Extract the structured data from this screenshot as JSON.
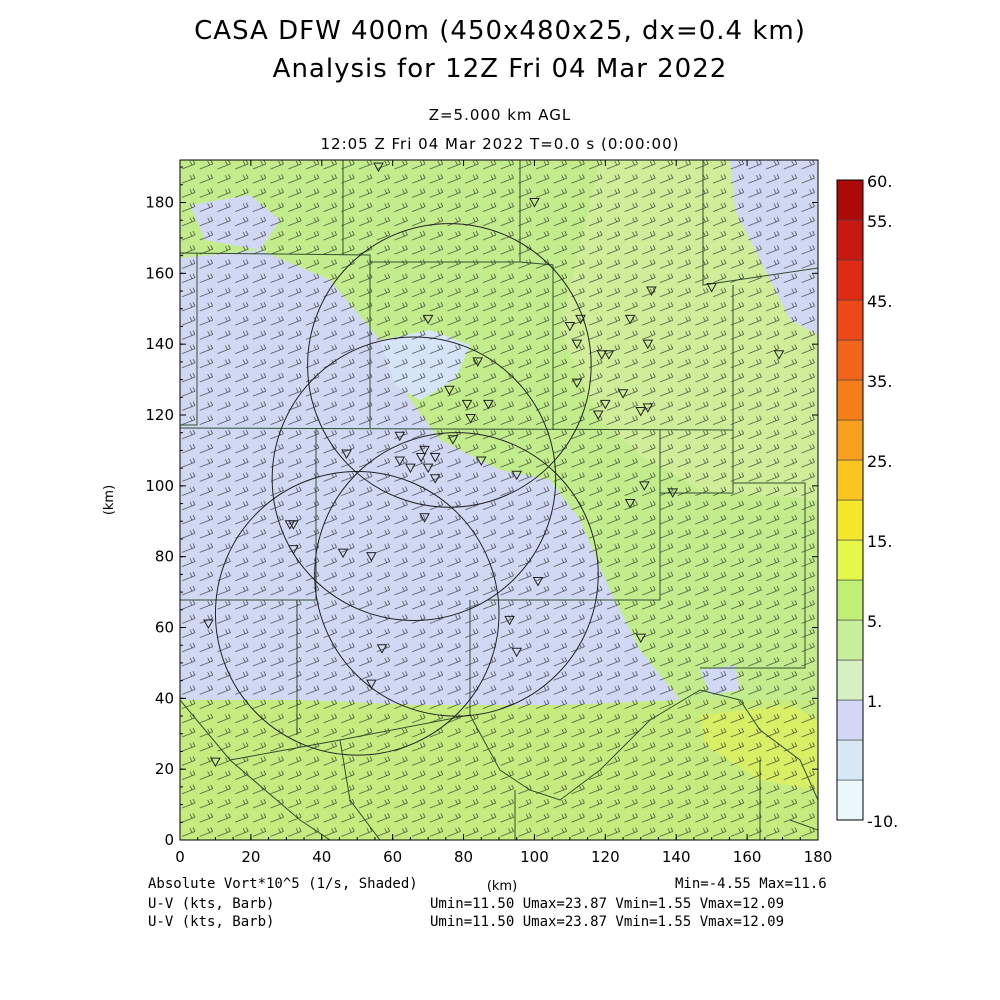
{
  "header": {
    "title_line1": "CASA DFW 400m (450x480x25, dx=0.4 km)",
    "title_line2": "Analysis for 12Z Fri 04 Mar 2022",
    "level": "Z=5.000 km AGL",
    "time": "12:05 Z Fri 04 Mar 2022    T=0.0 s (0:00:00)"
  },
  "axes": {
    "xlabel": "(km)",
    "ylabel": "(km)",
    "x_range": [
      0,
      180
    ],
    "y_range": [
      0,
      192
    ],
    "x_ticks": [
      "0",
      "20",
      "40",
      "60",
      "80",
      "100",
      "120",
      "140",
      "160",
      "180"
    ],
    "y_ticks": [
      "0",
      "20",
      "40",
      "60",
      "80",
      "100",
      "120",
      "140",
      "160",
      "180"
    ]
  },
  "colorbar": {
    "labels": [
      "60.",
      "55.",
      "45.",
      "35.",
      "25.",
      "15.",
      "5.",
      "1.",
      "-10."
    ],
    "colors": [
      "#ecf7fb",
      "#d7e8f7",
      "#d2d8f5",
      "#d7f0c3",
      "#c8ef9c",
      "#c0f075",
      "#e5f84a",
      "#f4e72c",
      "#fbc520",
      "#f9a11f",
      "#f67e18",
      "#f1641a",
      "#ec4818",
      "#e02b14",
      "#c71812",
      "#ae0909"
    ]
  },
  "fields": {
    "shaded_label": "Absolute Vort*10^5 (1/s, Shaded)",
    "shaded_minmax": "Min=-4.55 Max=11.6",
    "barb1_label": "U-V (kts, Barb)",
    "barb1_stats": "Umin=11.50 Umax=23.87 Vmin=1.55 Vmax=12.09",
    "barb2_label": "U-V (kts, Barb)",
    "barb2_stats": "Umin=11.50 Umax=23.87 Vmin=1.55 Vmax=12.09"
  },
  "map": {
    "radar_rings": [
      {
        "x": 76,
        "y": 134,
        "r": 40
      },
      {
        "x": 66,
        "y": 102,
        "r": 40
      },
      {
        "x": 78,
        "y": 75,
        "r": 40
      },
      {
        "x": 50,
        "y": 64,
        "r": 40
      }
    ],
    "stations": [
      [
        56,
        190
      ],
      [
        100,
        180
      ],
      [
        150,
        156
      ],
      [
        133,
        155
      ],
      [
        113,
        147
      ],
      [
        110,
        145
      ],
      [
        127,
        147
      ],
      [
        70,
        147
      ],
      [
        112,
        140
      ],
      [
        132,
        140
      ],
      [
        84,
        135
      ],
      [
        119,
        137
      ],
      [
        121,
        137
      ],
      [
        169,
        137
      ],
      [
        112,
        129
      ],
      [
        76,
        127
      ],
      [
        125,
        126
      ],
      [
        120,
        123
      ],
      [
        81,
        123
      ],
      [
        87,
        123
      ],
      [
        130,
        121
      ],
      [
        132,
        122
      ],
      [
        118,
        120
      ],
      [
        82,
        119
      ],
      [
        62,
        114
      ],
      [
        77,
        113
      ],
      [
        69,
        110
      ],
      [
        62,
        107
      ],
      [
        68,
        108
      ],
      [
        72,
        108
      ],
      [
        47,
        109
      ],
      [
        85,
        107
      ],
      [
        65,
        105
      ],
      [
        70,
        105
      ],
      [
        95,
        103
      ],
      [
        72,
        102
      ],
      [
        131,
        100
      ],
      [
        139,
        98
      ],
      [
        127,
        95
      ],
      [
        69,
        91
      ],
      [
        31,
        89
      ],
      [
        32,
        89
      ],
      [
        32,
        82
      ],
      [
        46,
        81
      ],
      [
        54,
        80
      ],
      [
        101,
        73
      ],
      [
        8,
        61
      ],
      [
        93,
        62
      ],
      [
        130,
        57
      ],
      [
        57,
        54
      ],
      [
        95,
        53
      ],
      [
        54,
        44
      ],
      [
        10,
        22
      ]
    ],
    "shading_classes": [
      "-10 to 1",
      "1 to 5",
      "5 to 15"
    ]
  }
}
